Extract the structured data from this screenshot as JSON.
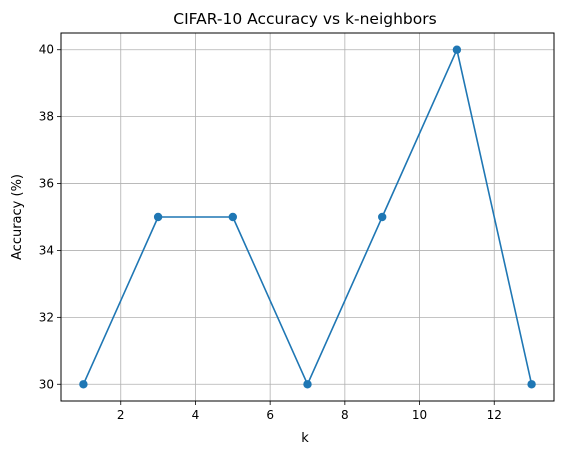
{
  "chart_data": {
    "type": "line",
    "title": "CIFAR-10 Accuracy vs k-neighbors",
    "xlabel": "k",
    "ylabel": "Accuracy (%)",
    "x": [
      1,
      3,
      5,
      7,
      9,
      11,
      13
    ],
    "series": [
      {
        "values": [
          30,
          35,
          35,
          30,
          35,
          40,
          30
        ],
        "color": "#1f77b4",
        "marker": "circle"
      }
    ],
    "xlim": [
      0.4,
      13.6
    ],
    "ylim": [
      29.5,
      40.5
    ],
    "xticks": [
      2,
      4,
      6,
      8,
      10,
      12
    ],
    "yticks": [
      30,
      32,
      34,
      36,
      38,
      40
    ],
    "grid": true,
    "legend": "none"
  }
}
